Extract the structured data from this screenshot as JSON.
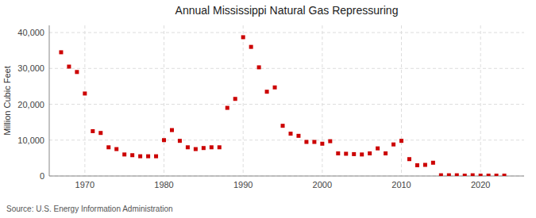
{
  "chart_data": {
    "type": "scatter",
    "title": "Annual Mississippi Natural Gas Repressuring",
    "ylabel": "Million Cubic Feet",
    "source": "Source: U.S. Energy Information Administration",
    "x": [
      1967,
      1968,
      1969,
      1970,
      1971,
      1972,
      1973,
      1974,
      1975,
      1976,
      1977,
      1978,
      1979,
      1980,
      1981,
      1982,
      1983,
      1984,
      1985,
      1986,
      1987,
      1988,
      1989,
      1990,
      1991,
      1992,
      1993,
      1994,
      1995,
      1996,
      1997,
      1998,
      1999,
      2000,
      2001,
      2002,
      2003,
      2004,
      2005,
      2006,
      2007,
      2008,
      2009,
      2010,
      2011,
      2012,
      2013,
      2014,
      2015,
      2016,
      2017,
      2018,
      2019,
      2020,
      2021,
      2022,
      2023
    ],
    "values": [
      34500,
      30500,
      29000,
      23000,
      12500,
      12000,
      8000,
      7500,
      6000,
      5800,
      5500,
      5500,
      5500,
      10000,
      12800,
      9800,
      8000,
      7500,
      7800,
      8000,
      8000,
      19000,
      21500,
      38700,
      36000,
      30300,
      23500,
      24700,
      14000,
      11800,
      11200,
      9500,
      9500,
      9000,
      9700,
      6300,
      6200,
      6100,
      6000,
      6300,
      7700,
      6300,
      8800,
      9800,
      4700,
      3000,
      3100,
      3700,
      200,
      200,
      200,
      100,
      200,
      100,
      100,
      100,
      100
    ],
    "color": "#cc0000",
    "marker": "square",
    "grid": true,
    "xlim": [
      1965.5,
      2025.5
    ],
    "ylim": [
      0,
      42000
    ],
    "xticks": [
      1970,
      1980,
      1990,
      2000,
      2010,
      2020
    ],
    "yticks": [
      0,
      {
        "value": 10000,
        "label": "10,000"
      },
      {
        "value": 20000,
        "label": "20,000"
      },
      {
        "value": 30000,
        "label": "30,000"
      },
      {
        "value": 40000,
        "label": "40,000"
      }
    ]
  }
}
